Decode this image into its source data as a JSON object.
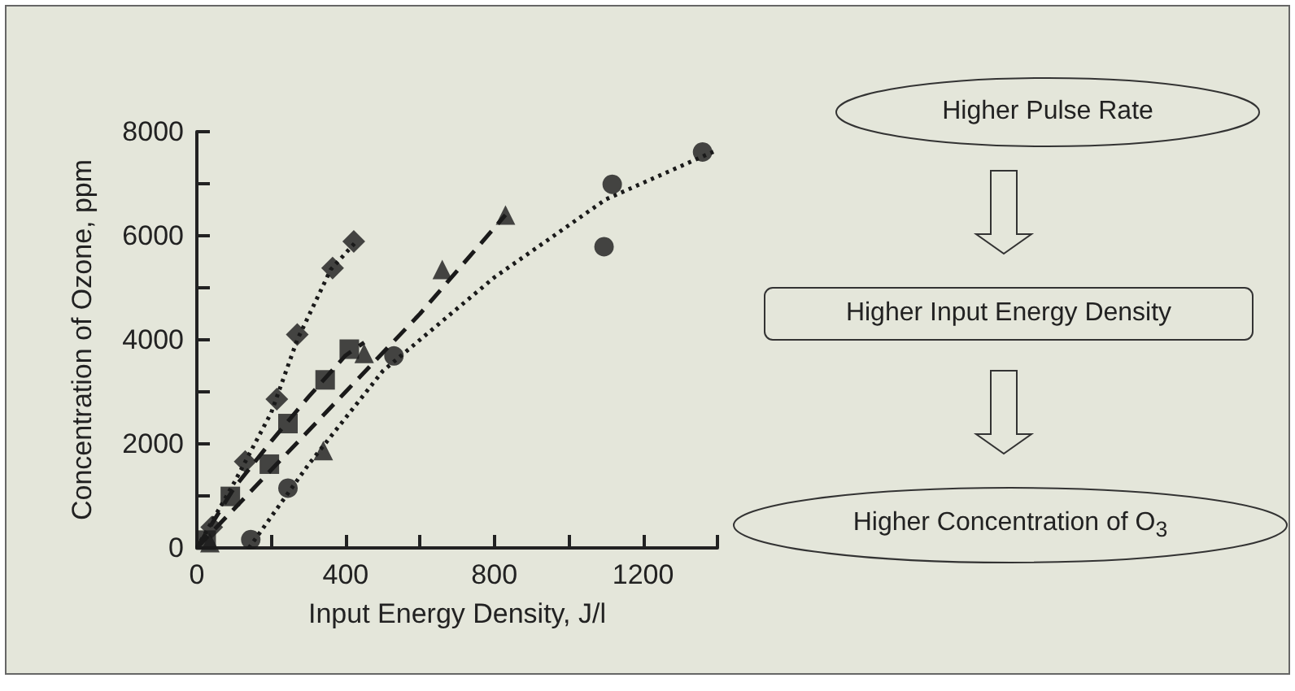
{
  "chart_data": {
    "type": "scatter",
    "xlabel": "Input Energy Density, J/l",
    "ylabel": "Concentration of Ozone, ppm",
    "xlim": [
      0,
      1400
    ],
    "ylim": [
      0,
      8000
    ],
    "xticks": [
      0,
      {
        "value": 200,
        "label": null
      },
      400,
      {
        "value": 600,
        "label": null
      },
      800,
      {
        "value": 1000,
        "label": null
      },
      1200,
      {
        "value": 1400,
        "label": null
      }
    ],
    "yticks": [
      0,
      {
        "value": 1000,
        "label": null
      },
      2000,
      {
        "value": 3000,
        "label": null
      },
      4000,
      {
        "value": 5000,
        "label": null
      },
      6000,
      {
        "value": 7000,
        "label": null
      },
      8000
    ],
    "grid": false,
    "series": [
      {
        "marker": "diamond",
        "color": "#1a1a1a",
        "x": [
          40,
          130,
          215,
          270,
          365,
          422
        ],
        "values": [
          400,
          1660,
          2860,
          4100,
          5380,
          5890
        ]
      },
      {
        "marker": "square",
        "color": "#1a1a1a",
        "x": [
          25,
          90,
          195,
          245,
          345,
          410
        ],
        "values": [
          150,
          990,
          1610,
          2390,
          3230,
          3820
        ]
      },
      {
        "marker": "triangle",
        "color": "#1a1a1a",
        "x": [
          35,
          340,
          450,
          660,
          830
        ],
        "values": [
          100,
          1870,
          3740,
          5350,
          6400
        ]
      },
      {
        "marker": "circle",
        "color": "#1a1a1a",
        "x": [
          145,
          245,
          530,
          1095,
          1117,
          1360
        ],
        "values": [
          160,
          1150,
          3690,
          5790,
          6990,
          7610
        ]
      },
      {
        "type": "line",
        "line_style": "dotted",
        "color": "#1a1a1a",
        "x": [
          0,
          100,
          200,
          270,
          360,
          430
        ],
        "values": [
          0,
          1250,
          2600,
          4000,
          5350,
          5900
        ]
      },
      {
        "type": "line",
        "line_style": "dashed",
        "color": "#1a1a1a",
        "x": [
          0,
          100,
          200,
          300,
          400,
          450
        ],
        "values": [
          0,
          1150,
          2050,
          2900,
          3700,
          3950
        ]
      },
      {
        "type": "line",
        "line_style": "dashed",
        "color": "#1a1a1a",
        "x": [
          0,
          200,
          400,
          600,
          830
        ],
        "values": [
          0,
          1500,
          3000,
          4500,
          6400
        ]
      },
      {
        "type": "line",
        "line_style": "dotted",
        "color": "#1a1a1a",
        "x": [
          140,
          300,
          500,
          800,
          1100,
          1400
        ],
        "values": [
          0,
          1600,
          3400,
          5200,
          6700,
          7650
        ]
      }
    ],
    "annotations": [
      "Higher Pulse Rate",
      "Higher Input Energy Density",
      "Higher Concentration of O$_{3}$"
    ]
  }
}
